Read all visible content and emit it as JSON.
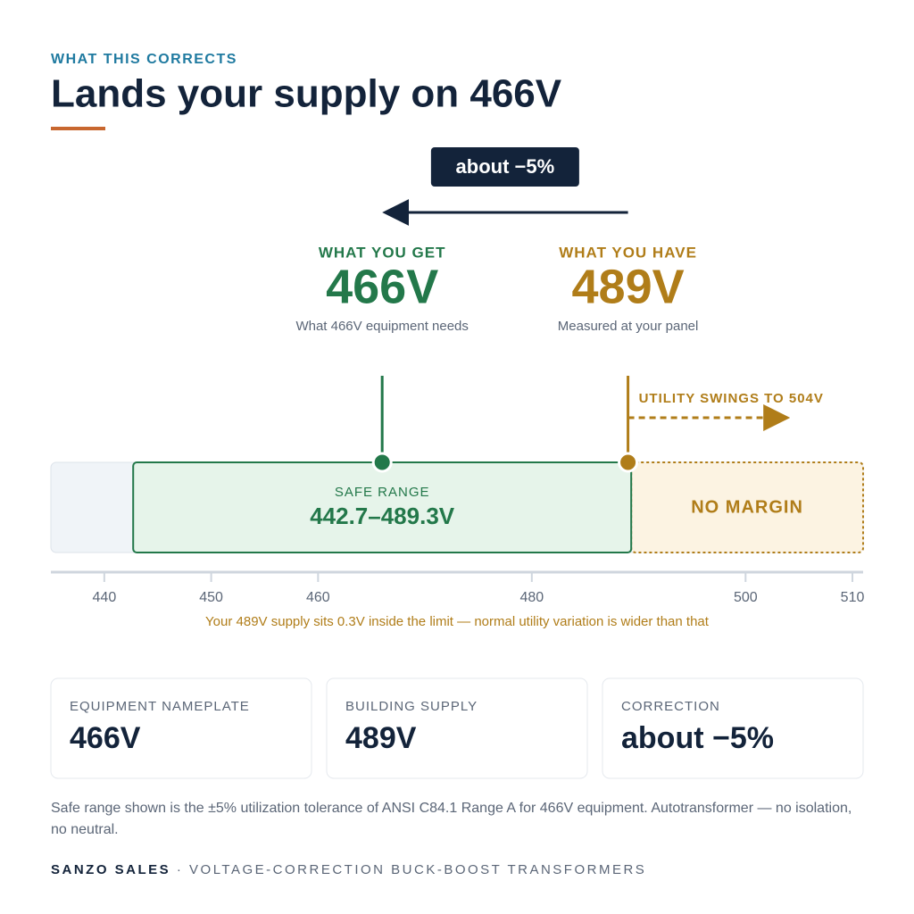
{
  "header": {
    "eyebrow": "WHAT THIS CORRECTS",
    "title": "Lands your supply on 466V"
  },
  "chart_data": {
    "type": "range",
    "change_label": "about −5%",
    "markers": [
      {
        "label": "WHAT YOU GET",
        "value": 466,
        "value_label": "466V",
        "note": "What 466V equipment needs",
        "color": "#23784a"
      },
      {
        "label": "WHAT YOU HAVE",
        "value": 489,
        "value_label": "489V",
        "note": "Measured at your panel",
        "color": "#b07d19"
      }
    ],
    "safe_range": {
      "label": "SAFE RANGE",
      "range_label": "442.7–489.3V",
      "values": [
        442.7,
        489.3
      ]
    },
    "no_margin": {
      "label": "NO MARGIN"
    },
    "swing": {
      "label": "UTILITY SWINGS TO 504V",
      "value": 504
    },
    "xlim": [
      435,
      511
    ],
    "xticks": [
      440,
      450,
      460,
      480,
      500,
      510
    ],
    "caption": "Your 489V supply sits 0.3V inside the limit — normal utility variation is wider than that"
  },
  "cards": [
    {
      "label": "EQUIPMENT NAMEPLATE",
      "value": "466V"
    },
    {
      "label": "BUILDING SUPPLY",
      "value": "489V"
    },
    {
      "label": "CORRECTION",
      "value": "about −5%"
    }
  ],
  "footnote": "Safe range shown is the ±5% utilization tolerance of ANSI C84.1 Range A for 466V equipment. Autotransformer — no isolation, no neutral.",
  "footer": {
    "brand": "SANZO SALES",
    "separator": "·",
    "tagline": "VOLTAGE-CORRECTION BUCK-BOOST TRANSFORMERS"
  }
}
